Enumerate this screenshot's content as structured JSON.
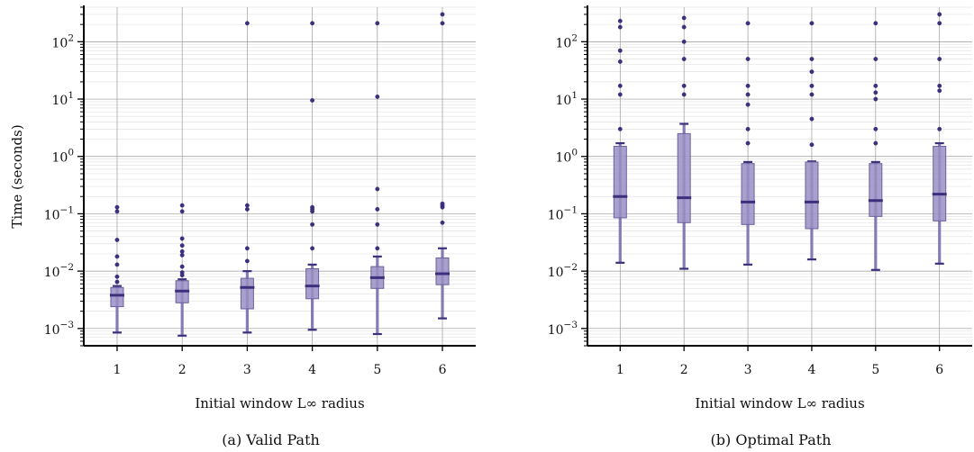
{
  "chart_data": [
    {
      "type": "box",
      "caption": "(a) Valid Path",
      "xlabel": "Initial window L∞ radius",
      "ylabel": "Time (seconds)",
      "yscale": "log",
      "ylim": [
        0.0005,
        400
      ],
      "grid": true,
      "categories": [
        "1",
        "2",
        "3",
        "4",
        "5",
        "6"
      ],
      "boxes": [
        {
          "whislo": 0.00085,
          "q1": 0.0024,
          "med": 0.0038,
          "q3": 0.0052,
          "whishi": 0.0055,
          "fliers": [
            0.13,
            0.11,
            0.035,
            0.018,
            0.013,
            0.008,
            0.0065
          ]
        },
        {
          "whislo": 0.00075,
          "q1": 0.0028,
          "med": 0.0045,
          "q3": 0.0068,
          "whishi": 0.0072,
          "fliers": [
            0.14,
            0.11,
            0.037,
            0.028,
            0.022,
            0.019,
            0.012,
            0.0095,
            0.0085
          ]
        },
        {
          "whislo": 0.00085,
          "q1": 0.0022,
          "med": 0.0052,
          "q3": 0.0075,
          "whishi": 0.01,
          "fliers": [
            210,
            0.14,
            0.12,
            0.025,
            0.015
          ]
        },
        {
          "whislo": 0.00095,
          "q1": 0.0033,
          "med": 0.0055,
          "q3": 0.011,
          "whishi": 0.013,
          "fliers": [
            210,
            9.5,
            0.13,
            0.12,
            0.11,
            0.065,
            0.025
          ]
        },
        {
          "whislo": 0.0008,
          "q1": 0.005,
          "med": 0.0077,
          "q3": 0.012,
          "whishi": 0.018,
          "fliers": [
            210,
            11,
            0.27,
            0.12,
            0.065,
            0.025
          ]
        },
        {
          "whislo": 0.0015,
          "q1": 0.0058,
          "med": 0.009,
          "q3": 0.017,
          "whishi": 0.025,
          "fliers": [
            300,
            210,
            0.15,
            0.14,
            0.13,
            0.07
          ]
        }
      ]
    },
    {
      "type": "box",
      "caption": "(b) Optimal Path",
      "xlabel": "Initial window L∞ radius",
      "ylabel": "",
      "yscale": "log",
      "ylim": [
        0.0005,
        400
      ],
      "grid": true,
      "categories": [
        "1",
        "2",
        "3",
        "4",
        "5",
        "6"
      ],
      "boxes": [
        {
          "whislo": 0.014,
          "q1": 0.085,
          "med": 0.2,
          "q3": 1.5,
          "whishi": 1.7,
          "fliers": [
            230,
            180,
            70,
            45,
            17,
            12,
            3
          ]
        },
        {
          "whislo": 0.011,
          "q1": 0.07,
          "med": 0.19,
          "q3": 2.5,
          "whishi": 3.7,
          "fliers": [
            260,
            180,
            100,
            50,
            17,
            12
          ]
        },
        {
          "whislo": 0.013,
          "q1": 0.065,
          "med": 0.16,
          "q3": 0.75,
          "whishi": 0.8,
          "fliers": [
            210,
            50,
            17,
            12,
            8,
            3,
            1.7
          ]
        },
        {
          "whislo": 0.016,
          "q1": 0.055,
          "med": 0.16,
          "q3": 0.8,
          "whishi": 0.82,
          "fliers": [
            210,
            50,
            30,
            17,
            12,
            4.5,
            1.6
          ]
        },
        {
          "whislo": 0.0105,
          "q1": 0.09,
          "med": 0.17,
          "q3": 0.75,
          "whishi": 0.8,
          "fliers": [
            210,
            50,
            17,
            13,
            10,
            3,
            1.7
          ]
        },
        {
          "whislo": 0.0135,
          "q1": 0.075,
          "med": 0.22,
          "q3": 1.5,
          "whishi": 1.7,
          "fliers": [
            300,
            210,
            50,
            17,
            14,
            3
          ]
        }
      ]
    }
  ],
  "colors": {
    "box_fill": "#9a8fc4",
    "box_edge": "#6c609f",
    "median": "#3d2f7c",
    "whisker": "#7d70b3",
    "flier": "#3d2f7c",
    "grid_major": "#9a9a9a",
    "grid_minor": "#e4e4e4",
    "axis": "#000000"
  }
}
